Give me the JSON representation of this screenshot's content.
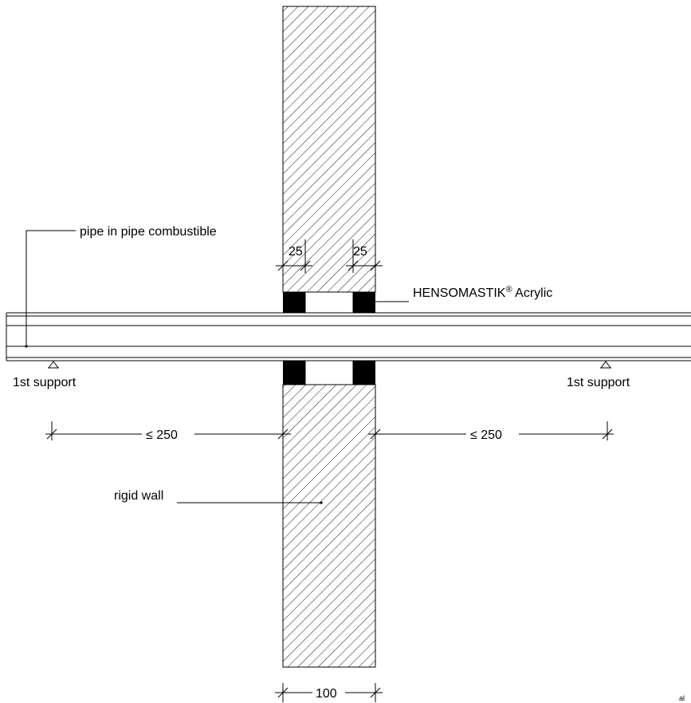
{
  "labels": {
    "pipe": "pipe in pipe combustible",
    "sealant_brand": "HENSOMASTIK",
    "sealant_mark": "®",
    "sealant_product": " Acrylic",
    "wall": "rigid wall",
    "support_left": "1st support",
    "support_right": "1st support"
  },
  "dimensions": {
    "seal_depth_left": "25",
    "seal_depth_right": "25",
    "support_distance_left": "≤ 250",
    "support_distance_right": "≤ 250",
    "wall_thickness": "100"
  },
  "corner_mark": "al"
}
